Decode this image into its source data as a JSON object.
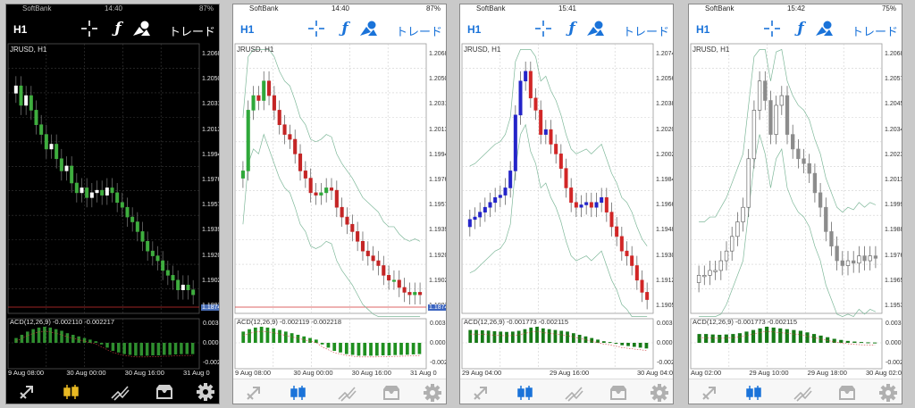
{
  "screens": [
    {
      "theme": "dark",
      "status": {
        "carrier": "SoftBank",
        "time": "14:40",
        "battery": "87%"
      },
      "timeframe": "H1",
      "trade_label": "トレード",
      "symbol_label": "JRUSD, H1",
      "macd_label": "ACD(12,26,9) -0.002110 -0.002217",
      "price_ticks": [
        "1.2068",
        "1.2050",
        "1.2031",
        "1.2013",
        "1.1994",
        "1.1976",
        "1.1957",
        "1.1939",
        "1.1920",
        "1.1902",
        "1.1883"
      ],
      "current_price": "1.1874",
      "macd_ticks": [
        "0.003",
        "0.000",
        "-0.002"
      ],
      "time_ticks": [
        "9 Aug 08:00",
        "30 Aug 00:00",
        "30 Aug 16:00",
        "31 Aug 0"
      ],
      "colors": {
        "bull": "#ffffff",
        "bear": "#3fae3f",
        "hist": "#2f8f2f"
      }
    },
    {
      "theme": "light",
      "status": {
        "carrier": "SoftBank",
        "time": "14:40",
        "battery": "87%"
      },
      "timeframe": "H1",
      "trade_label": "トレード",
      "symbol_label": "JRUSD, H1",
      "macd_label": "ACD(12,26,9) -0.002119 -0.002218",
      "price_ticks": [
        "1.2068",
        "1.2050",
        "1.2031",
        "1.2013",
        "1.1994",
        "1.1976",
        "1.1957",
        "1.1939",
        "1.1920",
        "1.1902",
        "1.1883"
      ],
      "current_price": "1.1874",
      "macd_ticks": [
        "0.003",
        "0.000",
        "-0.002"
      ],
      "time_ticks": [
        "9 Aug 08:00",
        "30 Aug 00:00",
        "30 Aug 16:00",
        "31 Aug 0"
      ],
      "colors": {
        "bull": "#2fa83a",
        "bear": "#c42525",
        "hist": "#1f8f1f"
      }
    },
    {
      "theme": "light",
      "status": {
        "carrier": "SoftBank",
        "time": "15:41",
        "battery": ""
      },
      "timeframe": "H1",
      "trade_label": "トレード",
      "symbol_label": "JRUSD, H1",
      "macd_label": "ACD(12,26,9) -0.001773 -0.002115",
      "price_ticks": [
        "1.2074",
        "1.2056",
        "1.2038",
        "1.2020",
        "1.2002",
        "1.1984",
        "1.1966",
        "1.1948",
        "1.1930",
        "1.1912",
        "1.1905"
      ],
      "current_price": "",
      "macd_ticks": [
        "0.003",
        "0.000",
        "-0.002"
      ],
      "time_ticks": [
        "29 Aug 04:00",
        "29 Aug 16:00",
        "30 Aug 04:00"
      ],
      "colors": {
        "bull": "#2424c8",
        "bear": "#d12626",
        "hist": "#177a17"
      }
    },
    {
      "theme": "light",
      "status": {
        "carrier": "SoftBank",
        "time": "15:42",
        "battery": "75%"
      },
      "timeframe": "H1",
      "trade_label": "トレード",
      "symbol_label": "JRUSD, H1",
      "macd_label": "ACD(12,26,9) -0.001773 -0.002115",
      "price_ticks": [
        "1.2068",
        "1.2057",
        "1.2045",
        "1.2034",
        "1.2023",
        "1.2011",
        "1.1999",
        "1.1988",
        "1.1976",
        "1.1965",
        "1.1953"
      ],
      "current_price": "",
      "macd_ticks": [
        "0.003",
        "0.000",
        "-0.002"
      ],
      "time_ticks": [
        "Aug 02:00",
        "29 Aug 10:00",
        "29 Aug 18:00",
        "30 Aug 02:00"
      ],
      "colors": {
        "bull": "#ffffff",
        "bear": "#8c8c8c",
        "hist": "#177a17"
      }
    }
  ],
  "icons": {
    "crosshair": "crosshair-icon",
    "indicators": "function-icon",
    "objects": "objects-icon",
    "tabs": [
      "quotes-icon",
      "chart-icon",
      "trade-icon",
      "history-icon",
      "settings-icon"
    ]
  }
}
